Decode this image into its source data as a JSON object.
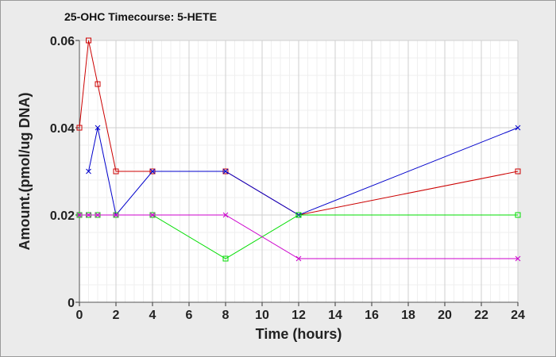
{
  "chart_data": {
    "type": "line",
    "title": "25-OHC Timecourse: 5-HETE",
    "xlabel": "Time (hours)",
    "ylabel": "Amount.(pmol/ug DNA)",
    "xlim": [
      0,
      24
    ],
    "ylim": [
      0,
      0.06
    ],
    "x_ticks": [
      "0",
      "2",
      "4",
      "6",
      "8",
      "10",
      "12",
      "14",
      "16",
      "18",
      "20",
      "22",
      "24"
    ],
    "y_ticks": [
      "0",
      "0.02",
      "0.04",
      "0.06"
    ],
    "grid": true,
    "minor_grid": true,
    "legend": "none",
    "series": [
      {
        "color": "#cc0000",
        "marker": "square",
        "x": [
          0,
          0.5,
          1,
          2,
          4,
          8,
          12,
          24
        ],
        "y": [
          0.04,
          0.06,
          0.05,
          0.03,
          0.03,
          0.03,
          0.02,
          0.03
        ]
      },
      {
        "color": "#0000cc",
        "marker": "cross",
        "x": [
          0.5,
          1,
          2,
          4,
          8,
          12,
          24
        ],
        "y": [
          0.03,
          0.04,
          0.02,
          0.03,
          0.03,
          0.02,
          0.04
        ]
      },
      {
        "color": "#00dd00",
        "marker": "square",
        "x": [
          0,
          0.5,
          1,
          2,
          4,
          8,
          12,
          24
        ],
        "y": [
          0.02,
          0.02,
          0.02,
          0.02,
          0.02,
          0.01,
          0.02,
          0.02
        ]
      },
      {
        "color": "#cc00cc",
        "marker": "cross",
        "x": [
          0,
          0.5,
          1,
          2,
          4,
          8,
          12,
          24
        ],
        "y": [
          0.02,
          0.02,
          0.02,
          0.02,
          0.02,
          0.02,
          0.01,
          0.01
        ]
      }
    ]
  }
}
